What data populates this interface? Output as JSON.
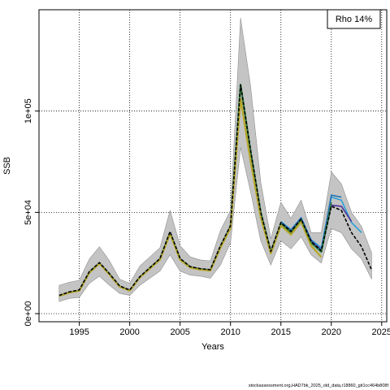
{
  "chart_data": {
    "type": "line",
    "xlabel": "Years",
    "ylabel": "SSB",
    "xlim": [
      1991,
      2025.5
    ],
    "ylim": [
      -4000,
      150000
    ],
    "x_ticks": [
      1995,
      2000,
      2005,
      2010,
      2015,
      2020,
      2025
    ],
    "y_ticks": [
      {
        "value": 0,
        "label": "0e+00"
      },
      {
        "value": 50000,
        "label": "5e+04"
      },
      {
        "value": 100000,
        "label": "1e+05"
      }
    ],
    "grid": true,
    "legend": {
      "text": "Rho 14%",
      "position": "top-right"
    },
    "footer": "stockassessment.org,HAD7bk_2025_old_data,r18860_git1cc464b808f",
    "colors": {
      "band": "#c4c4c4",
      "band_stroke": "#8f8f8f",
      "base": "#2f7f3f",
      "overlay": "#b5a62a",
      "retro": [
        "#1f6fb5",
        "#2a3f9e",
        "#2b9fd6",
        "#3a4aa8",
        "#4d2f9a"
      ],
      "final": "#000000",
      "grid": "#000000"
    },
    "band": {
      "years": [
        1993,
        1994,
        1995,
        1996,
        1997,
        1998,
        1999,
        2000,
        2001,
        2002,
        2003,
        2004,
        2005,
        2006,
        2007,
        2008,
        2009,
        2010,
        2011,
        2012,
        2013,
        2014,
        2015,
        2016,
        2017,
        2018,
        2019,
        2020,
        2021,
        2022,
        2023,
        2024
      ],
      "lower": [
        6000,
        7500,
        8000,
        15000,
        18500,
        14000,
        10000,
        9000,
        14000,
        17500,
        21000,
        29000,
        21000,
        19000,
        18500,
        17500,
        24000,
        35000,
        82000,
        60000,
        36000,
        24000,
        36000,
        32000,
        38000,
        29000,
        25000,
        42000,
        40000,
        32000,
        27000,
        17000
      ],
      "upper": [
        14000,
        15500,
        16500,
        27000,
        33000,
        26000,
        17000,
        15000,
        23500,
        28000,
        32500,
        51000,
        33500,
        28000,
        26500,
        26000,
        41000,
        51000,
        146000,
        112000,
        65000,
        37000,
        55000,
        47000,
        56000,
        40000,
        40000,
        70000,
        64000,
        50000,
        43000,
        30000
      ]
    },
    "series": [
      {
        "years": [
          1993,
          1994,
          1995,
          1996,
          1997,
          1998,
          1999,
          2000,
          2001,
          2002,
          2003,
          2004,
          2005,
          2006,
          2007,
          2008,
          2009,
          2010,
          2011,
          2012,
          2013,
          2014,
          2015,
          2016,
          2017,
          2018,
          2019,
          2020
        ],
        "values": [
          8800,
          10500,
          11500,
          20500,
          25000,
          19500,
          13500,
          11500,
          18000,
          22500,
          27000,
          40000,
          27000,
          23000,
          22000,
          21500,
          33000,
          43000,
          113000,
          80000,
          50000,
          30500,
          44500,
          40000,
          46500,
          35000,
          30500,
          54000
        ]
      },
      {
        "years": [
          1993,
          1994,
          1995,
          1996,
          1997,
          1998,
          1999,
          2000,
          2001,
          2002,
          2003,
          2004,
          2005,
          2006,
          2007,
          2008,
          2009,
          2010,
          2011,
          2012,
          2013,
          2014,
          2015,
          2016,
          2017,
          2018,
          2019
        ],
        "values": [
          8700,
          10300,
          11300,
          20200,
          24700,
          19200,
          13300,
          11300,
          17800,
          22200,
          26600,
          39400,
          26600,
          22700,
          21700,
          21200,
          32500,
          42300,
          106000,
          75000,
          47500,
          29700,
          43500,
          39000,
          45300,
          33500,
          28000
        ]
      },
      {
        "years": [
          2015,
          2016,
          2017,
          2018,
          2019,
          2020,
          2021,
          2022,
          2023
        ],
        "values": [
          45500,
          41500,
          47500,
          36500,
          32500,
          57500,
          56000,
          45000,
          40000
        ]
      },
      {
        "years": [
          2015,
          2016,
          2017,
          2018,
          2019,
          2020,
          2021,
          2022
        ],
        "values": [
          45000,
          41000,
          47000,
          36000,
          31500,
          53500,
          53000,
          45500
        ]
      },
      {
        "years": [
          2015,
          2016,
          2017,
          2018,
          2019,
          2020,
          2021
        ],
        "values": [
          44800,
          40800,
          46800,
          35500,
          31000,
          58500,
          57500
        ]
      },
      {
        "years": [
          2015,
          2016,
          2017,
          2018,
          2019,
          2020
        ],
        "values": [
          44500,
          40500,
          46500,
          35200,
          30500,
          55000
        ]
      },
      {
        "years": [
          1993,
          1994,
          1995,
          1996,
          1997,
          1998,
          1999,
          2000,
          2001,
          2002,
          2003,
          2004,
          2005,
          2006,
          2007,
          2008,
          2009,
          2010,
          2011,
          2012,
          2013,
          2014,
          2015,
          2016,
          2017,
          2018,
          2019,
          2020,
          2021,
          2022,
          2023,
          2024
        ],
        "values": [
          9000,
          10700,
          11700,
          20700,
          25200,
          19700,
          13700,
          11700,
          18200,
          22700,
          27200,
          40500,
          27200,
          23200,
          22200,
          21700,
          33500,
          43500,
          113000,
          80500,
          50000,
          30700,
          45000,
          40500,
          46700,
          35500,
          31000,
          53000,
          51000,
          40000,
          33000,
          21500
        ]
      }
    ]
  }
}
